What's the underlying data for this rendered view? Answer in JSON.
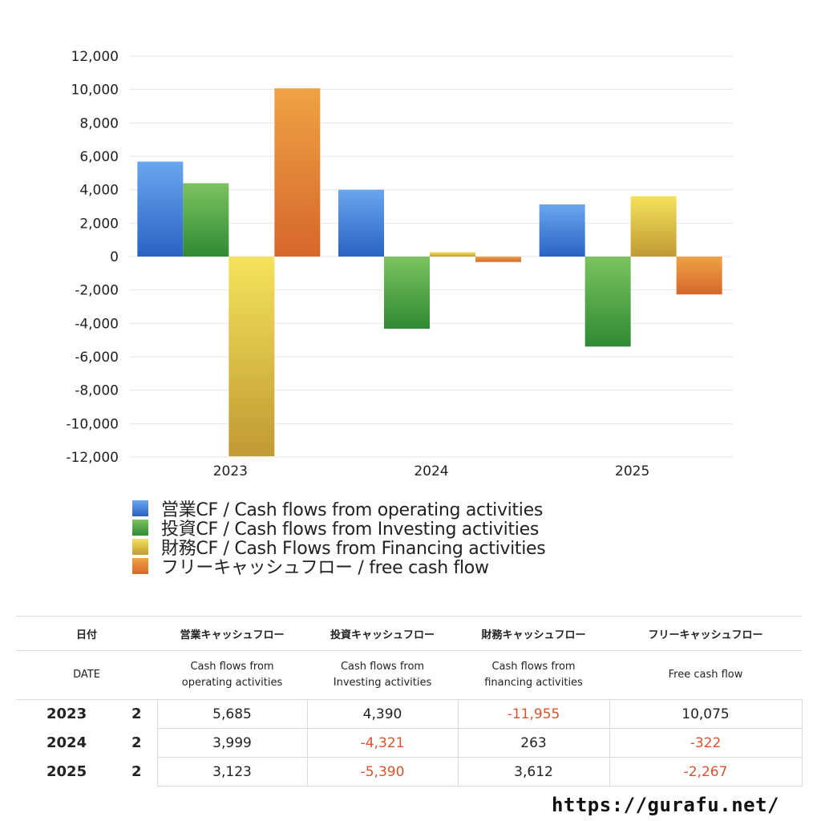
{
  "chart_data": {
    "type": "bar",
    "categories": [
      "2023",
      "2024",
      "2025"
    ],
    "series": [
      {
        "name": "営業CF / Cash flows from operating activities",
        "values": [
          5685,
          3999,
          3123
        ],
        "color": "#3f7fdc"
      },
      {
        "name": "投資CF / Cash flows from Investing activities",
        "values": [
          4390,
          -4321,
          -5390
        ],
        "color": "#4aa040"
      },
      {
        "name": "財務CF / Cash Flows from Financing activities",
        "values": [
          -11955,
          263,
          3612
        ],
        "color": "#e0c23c"
      },
      {
        "name": "フリーキャッシュフロー / free cash flow",
        "values": [
          10075,
          -322,
          -2267
        ],
        "color": "#e3883a"
      }
    ],
    "ylim": [
      -12000,
      12000
    ],
    "yticks": [
      12000,
      10000,
      8000,
      6000,
      4000,
      2000,
      0,
      -2000,
      -4000,
      -6000,
      -8000,
      -10000,
      -12000
    ],
    "ytick_labels": [
      "12,000",
      "10,000",
      "8,000",
      "6,000",
      "4,000",
      "2,000",
      "0",
      "-2,000",
      "-4,000",
      "-6,000",
      "-8,000",
      "-10,000",
      "-12,000"
    ],
    "grid": true,
    "legend_position": "bottom"
  },
  "table": {
    "header": {
      "date": "日付",
      "operating": "営業キャッシュフロー",
      "investing": "投資キャッシュフロー",
      "financing": "財務キャッシュフロー",
      "free": "フリーキャッシュフロー"
    },
    "subheader": {
      "date": "DATE",
      "operating_1": "Cash flows from",
      "operating_2": "operating activities",
      "investing_1": "Cash flows from",
      "investing_2": "Investing activities",
      "financing_1": "Cash flows from",
      "financing_2": "financing activities",
      "free": "Free cash flow"
    },
    "rows": [
      {
        "year": "2023",
        "q": "2",
        "operating": "5,685",
        "investing": "4,390",
        "financing": "-11,955",
        "free": "10,075"
      },
      {
        "year": "2024",
        "q": "2",
        "operating": "3,999",
        "investing": "-4,321",
        "financing": "263",
        "free": "-322"
      },
      {
        "year": "2025",
        "q": "2",
        "operating": "3,123",
        "investing": "-5,390",
        "financing": "3,612",
        "free": "-2,267"
      }
    ]
  },
  "footer": {
    "url": "https://gurafu.net/"
  }
}
